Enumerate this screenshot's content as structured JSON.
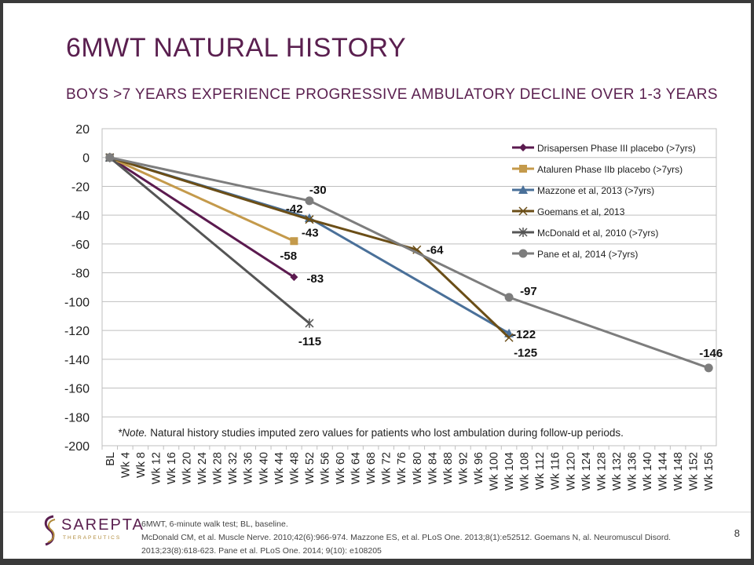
{
  "slide": {
    "title": "6MWT NATURAL HISTORY",
    "subtitle": "BOYS >7 YEARS EXPERIENCE PROGRESSIVE AMBULATORY DECLINE OVER 1-3 YEARS",
    "page_number": "8",
    "logo_name": "SAREPTA",
    "logo_sub": "THERAPEUTICS",
    "footnote_line1": "6MWT, 6-minute walk test; BL, baseline.",
    "footnote_line2": "McDonald CM, et al. Muscle Nerve. 2010;42(6):966-974. Mazzone ES, et al. PLoS One. 2013;8(1):e52512. Goemans N, al. Neuromuscul Disord.",
    "footnote_line3": "2013;23(8):618-623. Pane et al. PLoS One. 2014; 9(10): e108205",
    "colors": {
      "brand": "#5a1f4f",
      "gold": "#b08a3a"
    }
  },
  "chart_data": {
    "type": "line",
    "title": "",
    "xlabel": "",
    "ylabel": "",
    "ylim": [
      -200,
      20
    ],
    "yticks": [
      20,
      0,
      -20,
      -40,
      -60,
      -80,
      -100,
      -120,
      -140,
      -160,
      -180,
      -200
    ],
    "categories": [
      "BL",
      "Wk 4",
      "Wk 8",
      "Wk 12",
      "Wk 16",
      "Wk 20",
      "Wk 24",
      "Wk 28",
      "Wk 32",
      "Wk 36",
      "Wk 40",
      "Wk 44",
      "Wk 48",
      "Wk 52",
      "Wk 56",
      "Wk 60",
      "Wk 64",
      "Wk 68",
      "Wk 72",
      "Wk 76",
      "Wk 80",
      "Wk 84",
      "Wk 88",
      "Wk 92",
      "Wk 96",
      "Wk 100",
      "Wk 104",
      "Wk 108",
      "Wk 112",
      "Wk 116",
      "Wk 120",
      "Wk 124",
      "Wk 128",
      "Wk 132",
      "Wk 136",
      "Wk 140",
      "Wk 144",
      "Wk 148",
      "Wk 152",
      "Wk 156"
    ],
    "grid": true,
    "legend_position": "top-right",
    "note_italic": "*Note.",
    "note_text": " Natural history studies imputed zero values for patients who lost ambulation during follow-up periods.",
    "series": [
      {
        "name": "Drisapersen Phase III placebo (>7yrs)",
        "color": "#5b1a4f",
        "marker": "diamond",
        "points": [
          [
            "BL",
            0
          ],
          [
            "Wk 48",
            -83
          ]
        ]
      },
      {
        "name": "Ataluren Phase IIb placebo (>7yrs)",
        "color": "#c49a4b",
        "marker": "square",
        "points": [
          [
            "BL",
            0
          ],
          [
            "Wk 48",
            -58
          ]
        ]
      },
      {
        "name": "Mazzone et al, 2013 (>7yrs)",
        "color": "#4a7099",
        "marker": "triangle",
        "points": [
          [
            "BL",
            0
          ],
          [
            "Wk 52",
            -42
          ],
          [
            "Wk 104",
            -122
          ]
        ]
      },
      {
        "name": "Goemans et al, 2013",
        "color": "#6b4e17",
        "marker": "x",
        "points": [
          [
            "BL",
            0
          ],
          [
            "Wk 52",
            -43
          ],
          [
            "Wk 80",
            -64
          ],
          [
            "Wk 104",
            -125
          ]
        ]
      },
      {
        "name": "McDonald et al, 2010 (>7yrs)",
        "color": "#555555",
        "marker": "star",
        "points": [
          [
            "BL",
            0
          ],
          [
            "Wk 52",
            -115
          ]
        ]
      },
      {
        "name": "Pane et al, 2014 (>7yrs)",
        "color": "#7d7d7d",
        "marker": "circle",
        "points": [
          [
            "BL",
            0
          ],
          [
            "Wk 52",
            -30
          ],
          [
            "Wk 104",
            -97
          ],
          [
            "Wk 156",
            -146
          ]
        ]
      }
    ],
    "data_labels": [
      {
        "text": "-30",
        "category": "Wk 52",
        "value": -30
      },
      {
        "text": "-42",
        "category": "Wk 52",
        "value": -42
      },
      {
        "text": "-43",
        "category": "Wk 52",
        "value": -43
      },
      {
        "text": "-58",
        "category": "Wk 48",
        "value": -58
      },
      {
        "text": "-64",
        "category": "Wk 80",
        "value": -64
      },
      {
        "text": "-83",
        "category": "Wk 48",
        "value": -83
      },
      {
        "text": "-97",
        "category": "Wk 104",
        "value": -97
      },
      {
        "text": "-115",
        "category": "Wk 52",
        "value": -115
      },
      {
        "text": "-122",
        "category": "Wk 104",
        "value": -122
      },
      {
        "text": "-125",
        "category": "Wk 104",
        "value": -125
      },
      {
        "text": "-146",
        "category": "Wk 156",
        "value": -146
      }
    ]
  }
}
